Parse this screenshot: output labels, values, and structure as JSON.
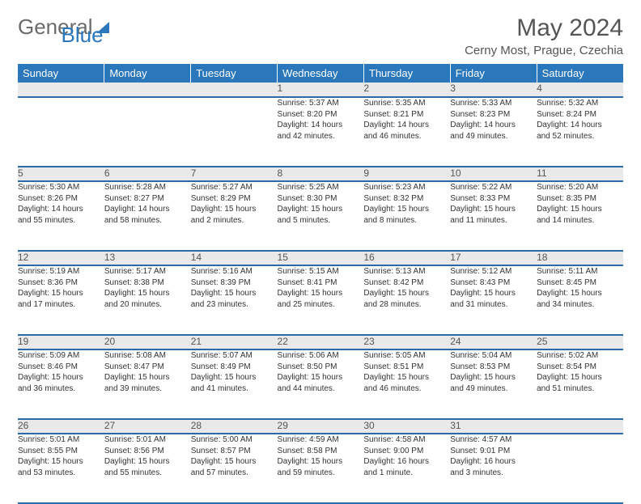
{
  "brand": {
    "part1": "General",
    "part2": "Blue"
  },
  "title": "May 2024",
  "location": "Cerny Most, Prague, Czechia",
  "colors": {
    "header_bg": "#2a77bb",
    "header_fg": "#ffffff",
    "daynum_bg": "#e9e9e9",
    "rule": "#2a6aa8",
    "text": "#333333"
  },
  "weekdays": [
    "Sunday",
    "Monday",
    "Tuesday",
    "Wednesday",
    "Thursday",
    "Friday",
    "Saturday"
  ],
  "weeks": [
    [
      null,
      null,
      null,
      {
        "n": "1",
        "sr": "Sunrise: 5:37 AM",
        "ss": "Sunset: 8:20 PM",
        "d1": "Daylight: 14 hours",
        "d2": "and 42 minutes."
      },
      {
        "n": "2",
        "sr": "Sunrise: 5:35 AM",
        "ss": "Sunset: 8:21 PM",
        "d1": "Daylight: 14 hours",
        "d2": "and 46 minutes."
      },
      {
        "n": "3",
        "sr": "Sunrise: 5:33 AM",
        "ss": "Sunset: 8:23 PM",
        "d1": "Daylight: 14 hours",
        "d2": "and 49 minutes."
      },
      {
        "n": "4",
        "sr": "Sunrise: 5:32 AM",
        "ss": "Sunset: 8:24 PM",
        "d1": "Daylight: 14 hours",
        "d2": "and 52 minutes."
      }
    ],
    [
      {
        "n": "5",
        "sr": "Sunrise: 5:30 AM",
        "ss": "Sunset: 8:26 PM",
        "d1": "Daylight: 14 hours",
        "d2": "and 55 minutes."
      },
      {
        "n": "6",
        "sr": "Sunrise: 5:28 AM",
        "ss": "Sunset: 8:27 PM",
        "d1": "Daylight: 14 hours",
        "d2": "and 58 minutes."
      },
      {
        "n": "7",
        "sr": "Sunrise: 5:27 AM",
        "ss": "Sunset: 8:29 PM",
        "d1": "Daylight: 15 hours",
        "d2": "and 2 minutes."
      },
      {
        "n": "8",
        "sr": "Sunrise: 5:25 AM",
        "ss": "Sunset: 8:30 PM",
        "d1": "Daylight: 15 hours",
        "d2": "and 5 minutes."
      },
      {
        "n": "9",
        "sr": "Sunrise: 5:23 AM",
        "ss": "Sunset: 8:32 PM",
        "d1": "Daylight: 15 hours",
        "d2": "and 8 minutes."
      },
      {
        "n": "10",
        "sr": "Sunrise: 5:22 AM",
        "ss": "Sunset: 8:33 PM",
        "d1": "Daylight: 15 hours",
        "d2": "and 11 minutes."
      },
      {
        "n": "11",
        "sr": "Sunrise: 5:20 AM",
        "ss": "Sunset: 8:35 PM",
        "d1": "Daylight: 15 hours",
        "d2": "and 14 minutes."
      }
    ],
    [
      {
        "n": "12",
        "sr": "Sunrise: 5:19 AM",
        "ss": "Sunset: 8:36 PM",
        "d1": "Daylight: 15 hours",
        "d2": "and 17 minutes."
      },
      {
        "n": "13",
        "sr": "Sunrise: 5:17 AM",
        "ss": "Sunset: 8:38 PM",
        "d1": "Daylight: 15 hours",
        "d2": "and 20 minutes."
      },
      {
        "n": "14",
        "sr": "Sunrise: 5:16 AM",
        "ss": "Sunset: 8:39 PM",
        "d1": "Daylight: 15 hours",
        "d2": "and 23 minutes."
      },
      {
        "n": "15",
        "sr": "Sunrise: 5:15 AM",
        "ss": "Sunset: 8:41 PM",
        "d1": "Daylight: 15 hours",
        "d2": "and 25 minutes."
      },
      {
        "n": "16",
        "sr": "Sunrise: 5:13 AM",
        "ss": "Sunset: 8:42 PM",
        "d1": "Daylight: 15 hours",
        "d2": "and 28 minutes."
      },
      {
        "n": "17",
        "sr": "Sunrise: 5:12 AM",
        "ss": "Sunset: 8:43 PM",
        "d1": "Daylight: 15 hours",
        "d2": "and 31 minutes."
      },
      {
        "n": "18",
        "sr": "Sunrise: 5:11 AM",
        "ss": "Sunset: 8:45 PM",
        "d1": "Daylight: 15 hours",
        "d2": "and 34 minutes."
      }
    ],
    [
      {
        "n": "19",
        "sr": "Sunrise: 5:09 AM",
        "ss": "Sunset: 8:46 PM",
        "d1": "Daylight: 15 hours",
        "d2": "and 36 minutes."
      },
      {
        "n": "20",
        "sr": "Sunrise: 5:08 AM",
        "ss": "Sunset: 8:47 PM",
        "d1": "Daylight: 15 hours",
        "d2": "and 39 minutes."
      },
      {
        "n": "21",
        "sr": "Sunrise: 5:07 AM",
        "ss": "Sunset: 8:49 PM",
        "d1": "Daylight: 15 hours",
        "d2": "and 41 minutes."
      },
      {
        "n": "22",
        "sr": "Sunrise: 5:06 AM",
        "ss": "Sunset: 8:50 PM",
        "d1": "Daylight: 15 hours",
        "d2": "and 44 minutes."
      },
      {
        "n": "23",
        "sr": "Sunrise: 5:05 AM",
        "ss": "Sunset: 8:51 PM",
        "d1": "Daylight: 15 hours",
        "d2": "and 46 minutes."
      },
      {
        "n": "24",
        "sr": "Sunrise: 5:04 AM",
        "ss": "Sunset: 8:53 PM",
        "d1": "Daylight: 15 hours",
        "d2": "and 49 minutes."
      },
      {
        "n": "25",
        "sr": "Sunrise: 5:02 AM",
        "ss": "Sunset: 8:54 PM",
        "d1": "Daylight: 15 hours",
        "d2": "and 51 minutes."
      }
    ],
    [
      {
        "n": "26",
        "sr": "Sunrise: 5:01 AM",
        "ss": "Sunset: 8:55 PM",
        "d1": "Daylight: 15 hours",
        "d2": "and 53 minutes."
      },
      {
        "n": "27",
        "sr": "Sunrise: 5:01 AM",
        "ss": "Sunset: 8:56 PM",
        "d1": "Daylight: 15 hours",
        "d2": "and 55 minutes."
      },
      {
        "n": "28",
        "sr": "Sunrise: 5:00 AM",
        "ss": "Sunset: 8:57 PM",
        "d1": "Daylight: 15 hours",
        "d2": "and 57 minutes."
      },
      {
        "n": "29",
        "sr": "Sunrise: 4:59 AM",
        "ss": "Sunset: 8:58 PM",
        "d1": "Daylight: 15 hours",
        "d2": "and 59 minutes."
      },
      {
        "n": "30",
        "sr": "Sunrise: 4:58 AM",
        "ss": "Sunset: 9:00 PM",
        "d1": "Daylight: 16 hours",
        "d2": "and 1 minute."
      },
      {
        "n": "31",
        "sr": "Sunrise: 4:57 AM",
        "ss": "Sunset: 9:01 PM",
        "d1": "Daylight: 16 hours",
        "d2": "and 3 minutes."
      },
      null
    ]
  ]
}
